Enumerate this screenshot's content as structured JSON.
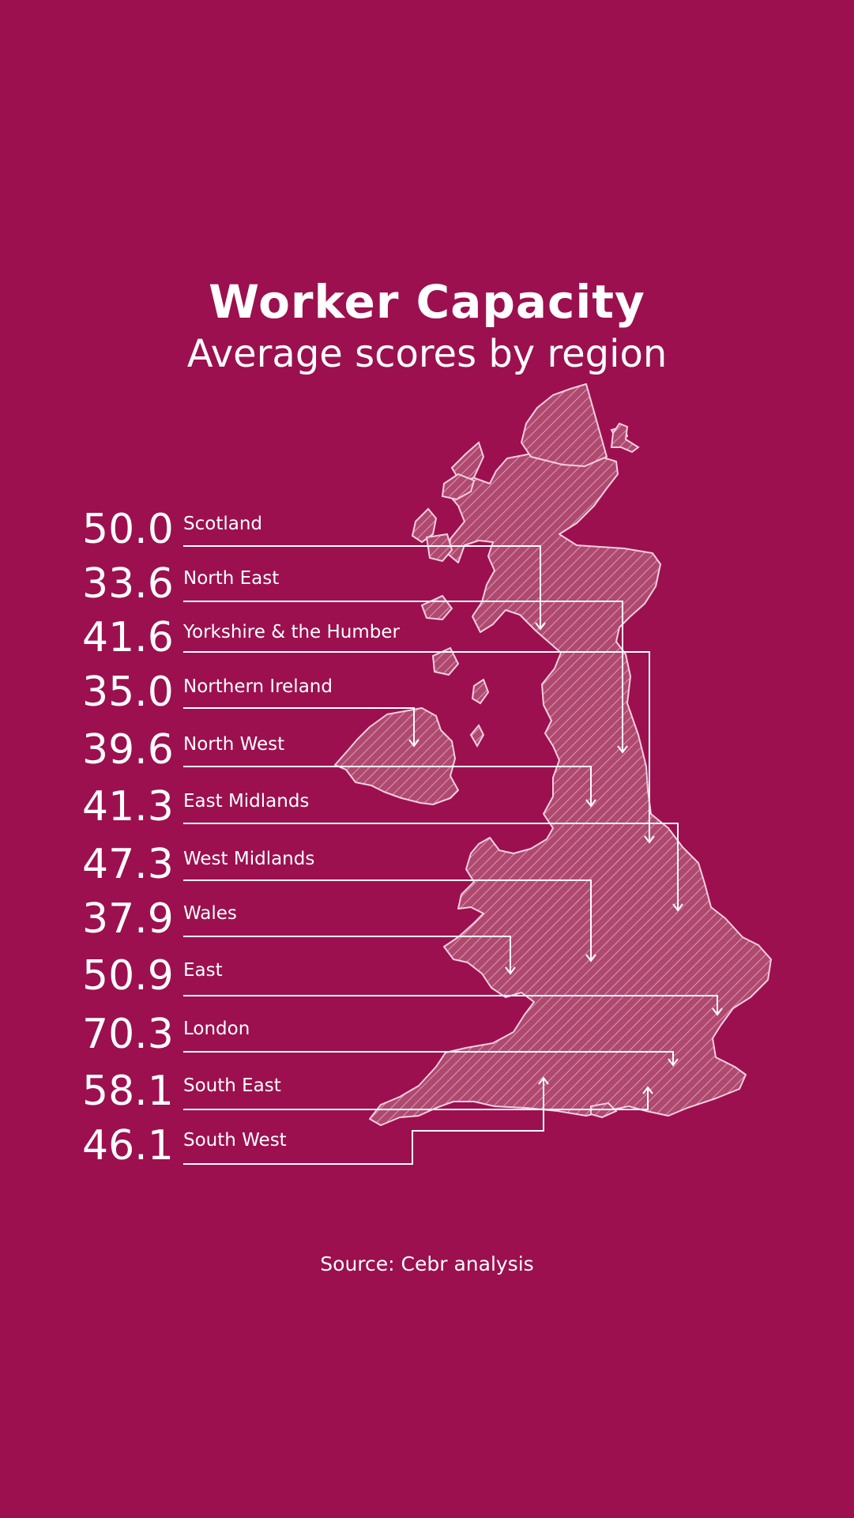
{
  "title": "Worker Capacity",
  "subtitle": "Average scores by region",
  "source": "Source: Cebr analysis",
  "map": {
    "description_icon": "uk-map-hatched-icon",
    "background_color": "#9c104f",
    "line_color": "#ffffff"
  },
  "regions": [
    {
      "name": "Scotland",
      "score": "50.0"
    },
    {
      "name": "North East",
      "score": "33.6"
    },
    {
      "name": "Yorkshire & the Humber",
      "score": "41.6"
    },
    {
      "name": "Northern Ireland",
      "score": "35.0"
    },
    {
      "name": "North West",
      "score": "39.6"
    },
    {
      "name": "East Midlands",
      "score": "41.3"
    },
    {
      "name": "West Midlands",
      "score": "47.3"
    },
    {
      "name": "Wales",
      "score": "37.9"
    },
    {
      "name": "East",
      "score": "50.9"
    },
    {
      "name": "London",
      "score": "70.3"
    },
    {
      "name": "South East",
      "score": "58.1"
    },
    {
      "name": "South West",
      "score": "46.1"
    }
  ]
}
